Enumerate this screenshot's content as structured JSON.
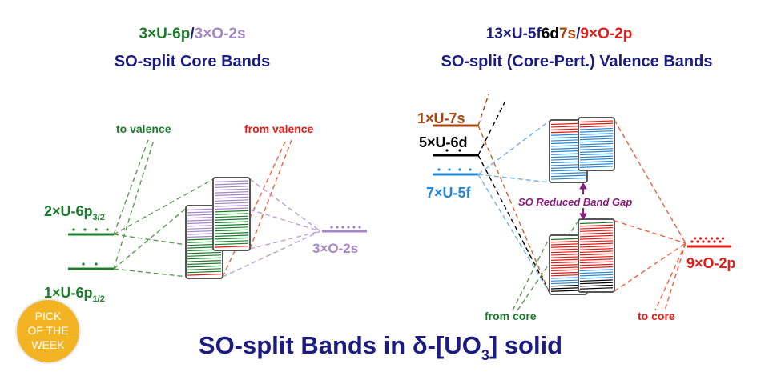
{
  "left_panel": {
    "heading_parts": [
      "3×U-6p",
      "/",
      "3×O-2s"
    ],
    "subheading": "SO-split Core Bands",
    "level_6p32": {
      "main": "2×U-6p",
      "sub": "3/2"
    },
    "level_6p12": {
      "main": "1×U-6p",
      "sub": "1/2"
    },
    "level_o2s": "3×O-2s",
    "to_valence": "to valence",
    "from_valence": "from valence"
  },
  "right_panel": {
    "heading_parts": [
      "13×U-5f",
      "6d",
      "7s",
      "/",
      "9×O-2p"
    ],
    "subheading": "SO-split (Core-Pert.) Valence Bands",
    "level_7s": "1×U-7s",
    "level_6d": "5×U-6d",
    "level_5f": "7×U-5f",
    "level_o2p": "9×O-2p",
    "band_gap": "SO Reduced Band Gap",
    "from_core": "from core",
    "to_core": "to core"
  },
  "title": {
    "main": "SO-split Bands in δ-[UO",
    "sub": "3",
    "end": "] solid"
  },
  "badge": {
    "lines": [
      "PICK",
      "OF THE",
      "WEEK"
    ]
  },
  "colors": {
    "navy": "#1c1c80",
    "green": "#1b7d2c",
    "purple": "#a585c8",
    "red": "#e41a14",
    "brown": "#a8440e",
    "blue": "#2588d4",
    "gap_purple": "#8c1a80",
    "badge": "#f2b422"
  }
}
